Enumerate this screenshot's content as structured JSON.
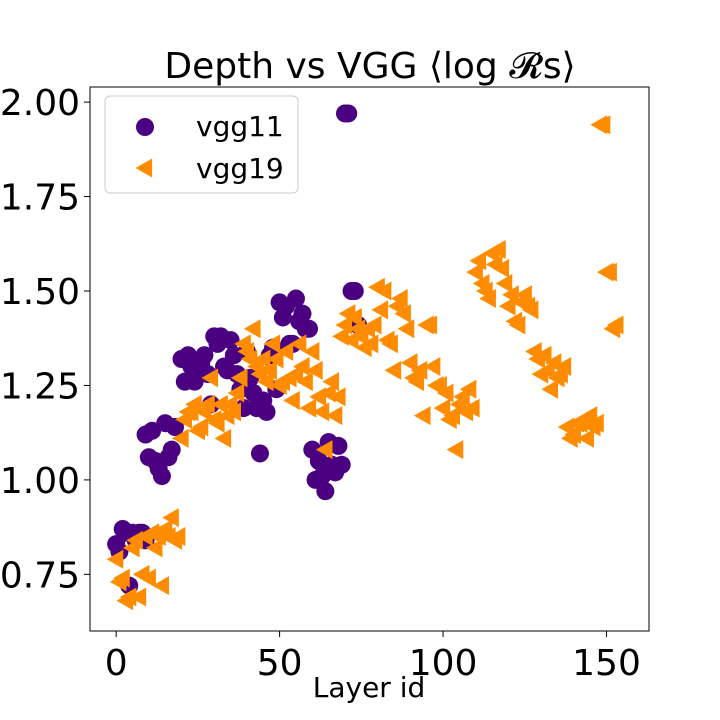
{
  "chart_data": {
    "type": "scatter",
    "title": "Depth vs VGG ⟨log 𝓡s⟩",
    "xlabel": "Layer id",
    "ylabel": "",
    "xlim": [
      -8,
      163
    ],
    "ylim": [
      0.6,
      2.04
    ],
    "xticks": [
      0,
      50,
      100,
      150
    ],
    "yticks": [
      0.75,
      1.0,
      1.25,
      1.5,
      1.75,
      2.0
    ],
    "xtick_labels": [
      "0",
      "50",
      "100",
      "150"
    ],
    "ytick_labels": [
      "0.75",
      "1.00",
      "1.25",
      "1.50",
      "1.75",
      "2.00"
    ],
    "legend_position": "top-left",
    "grid": false,
    "series": [
      {
        "name": "vgg11",
        "marker": "circle",
        "color": "#4b0082",
        "points": [
          [
            0,
            0.83
          ],
          [
            1,
            0.81
          ],
          [
            2,
            0.87
          ],
          [
            3,
            0.86
          ],
          [
            4,
            0.72
          ],
          [
            5,
            0.86
          ],
          [
            6,
            0.84
          ],
          [
            7,
            0.86
          ],
          [
            8,
            0.86
          ],
          [
            9,
            0.84
          ],
          [
            9,
            1.12
          ],
          [
            10,
            1.06
          ],
          [
            11,
            1.13
          ],
          [
            12,
            1.05
          ],
          [
            13,
            1.03
          ],
          [
            14,
            1.01
          ],
          [
            15,
            1.15
          ],
          [
            16,
            1.06
          ],
          [
            17,
            1.08
          ],
          [
            18,
            1.14
          ],
          [
            20,
            1.32
          ],
          [
            21,
            1.26
          ],
          [
            22,
            1.33
          ],
          [
            23,
            1.3
          ],
          [
            24,
            1.26
          ],
          [
            25,
            1.29
          ],
          [
            26,
            1.31
          ],
          [
            27,
            1.33
          ],
          [
            28,
            1.28
          ],
          [
            29,
            1.2
          ],
          [
            30,
            1.38
          ],
          [
            31,
            1.36
          ],
          [
            32,
            1.38
          ],
          [
            33,
            1.3
          ],
          [
            34,
            1.29
          ],
          [
            35,
            1.37
          ],
          [
            36,
            1.33
          ],
          [
            37,
            1.28
          ],
          [
            38,
            1.24
          ],
          [
            39,
            1.19
          ],
          [
            40,
            1.34
          ],
          [
            41,
            1.27
          ],
          [
            42,
            1.23
          ],
          [
            43,
            1.19
          ],
          [
            44,
            1.07
          ],
          [
            45,
            1.21
          ],
          [
            46,
            1.18
          ],
          [
            47,
            1.33
          ],
          [
            48,
            1.35
          ],
          [
            49,
            1.24
          ],
          [
            50,
            1.47
          ],
          [
            51,
            1.43
          ],
          [
            52,
            1.46
          ],
          [
            53,
            1.36
          ],
          [
            54,
            1.36
          ],
          [
            55,
            1.48
          ],
          [
            56,
            1.42
          ],
          [
            57,
            1.44
          ],
          [
            58,
            1.4
          ],
          [
            59,
            1.4
          ],
          [
            60,
            1.08
          ],
          [
            61,
            1.0
          ],
          [
            62,
            1.05
          ],
          [
            63,
            1.01
          ],
          [
            64,
            0.97
          ],
          [
            65,
            1.1
          ],
          [
            66,
            1.04
          ],
          [
            67,
            1.02
          ],
          [
            68,
            1.09
          ],
          [
            69,
            1.04
          ],
          [
            70,
            1.97
          ],
          [
            71,
            1.97
          ],
          [
            72,
            1.5
          ],
          [
            73,
            1.5
          ],
          [
            74,
            1.41
          ]
        ]
      },
      {
        "name": "vgg19",
        "marker": "triangle-left",
        "color": "#ff8c00",
        "points": [
          [
            0,
            0.79
          ],
          [
            1,
            0.73
          ],
          [
            2,
            0.74
          ],
          [
            3,
            0.68
          ],
          [
            4,
            0.69
          ],
          [
            5,
            0.82
          ],
          [
            6,
            0.84
          ],
          [
            7,
            0.69
          ],
          [
            8,
            0.75
          ],
          [
            9,
            0.85
          ],
          [
            10,
            0.74
          ],
          [
            11,
            0.86
          ],
          [
            12,
            0.82
          ],
          [
            13,
            0.85
          ],
          [
            14,
            0.72
          ],
          [
            15,
            0.87
          ],
          [
            16,
            0.85
          ],
          [
            17,
            0.9
          ],
          [
            18,
            0.84
          ],
          [
            19,
            0.85
          ],
          [
            20,
            1.11
          ],
          [
            21,
            1.16
          ],
          [
            22,
            1.18
          ],
          [
            23,
            1.18
          ],
          [
            24,
            1.2
          ],
          [
            25,
            1.13
          ],
          [
            26,
            1.14
          ],
          [
            27,
            1.18
          ],
          [
            28,
            1.2
          ],
          [
            29,
            1.27
          ],
          [
            30,
            1.16
          ],
          [
            31,
            1.15
          ],
          [
            32,
            1.2
          ],
          [
            33,
            1.11
          ],
          [
            34,
            1.17
          ],
          [
            35,
            1.2
          ],
          [
            36,
            1.18
          ],
          [
            37,
            1.23
          ],
          [
            38,
            1.27
          ],
          [
            39,
            1.36
          ],
          [
            40,
            1.34
          ],
          [
            41,
            1.32
          ],
          [
            42,
            1.4
          ],
          [
            43,
            1.3
          ],
          [
            44,
            1.28
          ],
          [
            45,
            1.32
          ],
          [
            46,
            1.26
          ],
          [
            47,
            1.29
          ],
          [
            48,
            1.36
          ],
          [
            49,
            1.32
          ],
          [
            50,
            1.25
          ],
          [
            51,
            1.26
          ],
          [
            52,
            1.34
          ],
          [
            53,
            1.27
          ],
          [
            54,
            1.21
          ],
          [
            55,
            1.28
          ],
          [
            56,
            1.36
          ],
          [
            57,
            1.3
          ],
          [
            58,
            1.26
          ],
          [
            59,
            1.19
          ],
          [
            60,
            1.34
          ],
          [
            61,
            1.29
          ],
          [
            62,
            1.22
          ],
          [
            63,
            1.18
          ],
          [
            64,
            1.08
          ],
          [
            65,
            1.23
          ],
          [
            66,
            1.26
          ],
          [
            67,
            1.17
          ],
          [
            68,
            1.22
          ],
          [
            69,
            1.38
          ],
          [
            70,
            1.41
          ],
          [
            71,
            1.44
          ],
          [
            72,
            1.37
          ],
          [
            73,
            1.43
          ],
          [
            74,
            1.4
          ],
          [
            75,
            1.38
          ],
          [
            76,
            1.35
          ],
          [
            77,
            1.4
          ],
          [
            78,
            1.36
          ],
          [
            79,
            1.41
          ],
          [
            80,
            1.51
          ],
          [
            81,
            1.45
          ],
          [
            82,
            1.5
          ],
          [
            83,
            1.37
          ],
          [
            84,
            1.36
          ],
          [
            85,
            1.29
          ],
          [
            86,
            1.46
          ],
          [
            87,
            1.48
          ],
          [
            88,
            1.44
          ],
          [
            89,
            1.4
          ],
          [
            90,
            1.31
          ],
          [
            91,
            1.27
          ],
          [
            92,
            1.26
          ],
          [
            93,
            1.29
          ],
          [
            94,
            1.17
          ],
          [
            95,
            1.41
          ],
          [
            96,
            1.41
          ],
          [
            97,
            1.3
          ],
          [
            98,
            1.25
          ],
          [
            99,
            1.25
          ],
          [
            100,
            1.19
          ],
          [
            101,
            1.23
          ],
          [
            102,
            1.16
          ],
          [
            103,
            1.17
          ],
          [
            104,
            1.08
          ],
          [
            105,
            1.2
          ],
          [
            106,
            1.22
          ],
          [
            107,
            1.18
          ],
          [
            108,
            1.24
          ],
          [
            109,
            1.19
          ],
          [
            110,
            1.55
          ],
          [
            111,
            1.58
          ],
          [
            112,
            1.52
          ],
          [
            113,
            1.5
          ],
          [
            114,
            1.48
          ],
          [
            115,
            1.6
          ],
          [
            116,
            1.57
          ],
          [
            117,
            1.61
          ],
          [
            118,
            1.56
          ],
          [
            119,
            1.52
          ],
          [
            120,
            1.46
          ],
          [
            121,
            1.49
          ],
          [
            122,
            1.42
          ],
          [
            123,
            1.41
          ],
          [
            124,
            1.47
          ],
          [
            125,
            1.49
          ],
          [
            126,
            1.46
          ],
          [
            127,
            1.45
          ],
          [
            128,
            1.34
          ],
          [
            129,
            1.32
          ],
          [
            130,
            1.28
          ],
          [
            131,
            1.33
          ],
          [
            132,
            1.29
          ],
          [
            133,
            1.24
          ],
          [
            134,
            1.31
          ],
          [
            135,
            1.27
          ],
          [
            136,
            1.28
          ],
          [
            137,
            1.3
          ],
          [
            138,
            1.14
          ],
          [
            139,
            1.11
          ],
          [
            140,
            1.12
          ],
          [
            141,
            1.15
          ],
          [
            142,
            1.15
          ],
          [
            143,
            1.16
          ],
          [
            144,
            1.11
          ],
          [
            145,
            1.17
          ],
          [
            146,
            1.14
          ],
          [
            147,
            1.15
          ],
          [
            148,
            1.94
          ],
          [
            149,
            1.94
          ],
          [
            150,
            1.55
          ],
          [
            151,
            1.55
          ],
          [
            152,
            1.4
          ],
          [
            153,
            1.41
          ]
        ]
      }
    ]
  }
}
